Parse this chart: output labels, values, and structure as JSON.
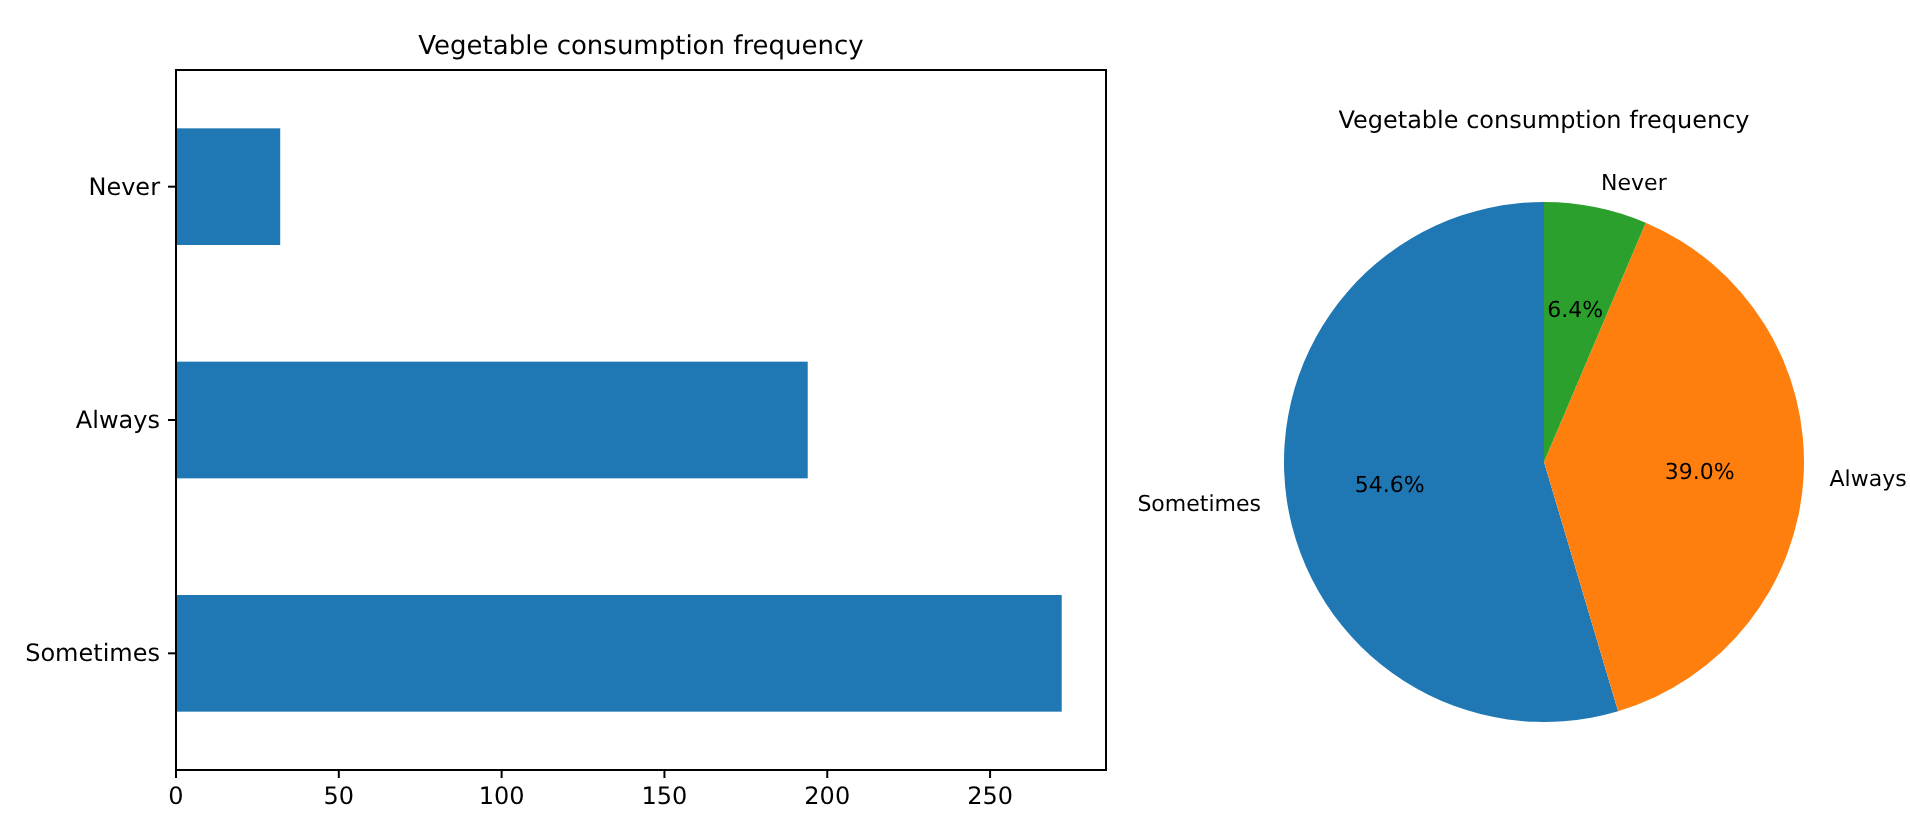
{
  "chart_data": [
    {
      "type": "bar",
      "title": "Vegetable consumption frequency",
      "orientation": "horizontal",
      "categories": [
        "Never",
        "Always",
        "Sometimes"
      ],
      "values": [
        32,
        194,
        272
      ],
      "color": "#1f77b4",
      "xlim": [
        0,
        285.6
      ],
      "xticks": [
        0,
        50,
        100,
        150,
        200,
        250
      ]
    },
    {
      "type": "pie",
      "title": "Vegetable consumption frequency",
      "categories": [
        "Sometimes",
        "Always",
        "Never"
      ],
      "values": [
        54.6,
        39.0,
        6.4
      ],
      "colors": [
        "#1f77b4",
        "#ff7f0e",
        "#2ca02c"
      ],
      "value_labels": [
        "54.6%",
        "39.0%",
        "6.4%"
      ]
    }
  ]
}
